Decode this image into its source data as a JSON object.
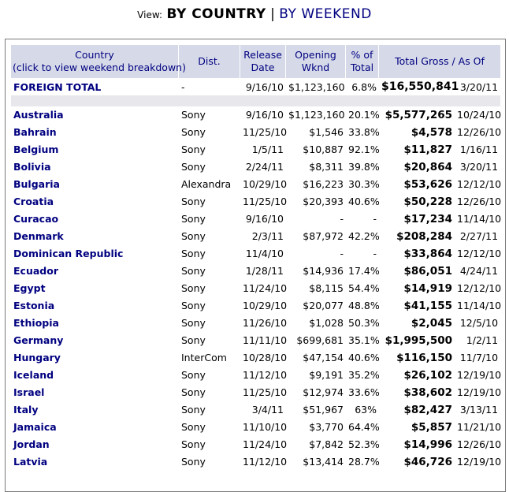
{
  "view": {
    "label": "View:",
    "current": "BY COUNTRY",
    "separator": "|",
    "alternate": "BY WEEKEND"
  },
  "headers": {
    "country_line1": "Country",
    "country_line2": "(click to view weekend breakdown)",
    "dist": "Dist.",
    "release_line1": "Release",
    "release_line2": "Date",
    "opening_line1": "Opening",
    "opening_line2": "Wknd",
    "pct_line1": "% of",
    "pct_line2": "Total",
    "gross": "Total Gross / As Of"
  },
  "foreign_total": {
    "country": "FOREIGN TOTAL",
    "dist": "-",
    "release": "9/16/10",
    "opening": "$1,123,160",
    "pct": "6.8%",
    "gross": "$16,550,841",
    "as_of": "3/20/11"
  },
  "rows": [
    {
      "country": "Australia",
      "dist": "Sony",
      "release": "9/16/10",
      "opening": "$1,123,160",
      "pct": "20.1%",
      "gross": "$5,577,265",
      "as_of": "10/24/10"
    },
    {
      "country": "Bahrain",
      "dist": "Sony",
      "release": "11/25/10",
      "opening": "$1,546",
      "pct": "33.8%",
      "gross": "$4,578",
      "as_of": "12/26/10"
    },
    {
      "country": "Belgium",
      "dist": "Sony",
      "release": "1/5/11",
      "opening": "$10,887",
      "pct": "92.1%",
      "gross": "$11,827",
      "as_of": "1/16/11"
    },
    {
      "country": "Bolivia",
      "dist": "Sony",
      "release": "2/24/11",
      "opening": "$8,311",
      "pct": "39.8%",
      "gross": "$20,864",
      "as_of": "3/20/11"
    },
    {
      "country": "Bulgaria",
      "dist": "Alexandra",
      "release": "10/29/10",
      "opening": "$16,223",
      "pct": "30.3%",
      "gross": "$53,626",
      "as_of": "12/12/10"
    },
    {
      "country": "Croatia",
      "dist": "Sony",
      "release": "11/25/10",
      "opening": "$20,393",
      "pct": "40.6%",
      "gross": "$50,228",
      "as_of": "12/26/10"
    },
    {
      "country": "Curacao",
      "dist": "Sony",
      "release": "9/16/10",
      "opening": "-",
      "pct": "-",
      "gross": "$17,234",
      "as_of": "11/14/10"
    },
    {
      "country": "Denmark",
      "dist": "Sony",
      "release": "2/3/11",
      "opening": "$87,972",
      "pct": "42.2%",
      "gross": "$208,284",
      "as_of": "2/27/11"
    },
    {
      "country": "Dominican Republic",
      "dist": "Sony",
      "release": "11/4/10",
      "opening": "-",
      "pct": "-",
      "gross": "$33,864",
      "as_of": "12/12/10"
    },
    {
      "country": "Ecuador",
      "dist": "Sony",
      "release": "1/28/11",
      "opening": "$14,936",
      "pct": "17.4%",
      "gross": "$86,051",
      "as_of": "4/24/11"
    },
    {
      "country": "Egypt",
      "dist": "Sony",
      "release": "11/24/10",
      "opening": "$8,115",
      "pct": "54.4%",
      "gross": "$14,919",
      "as_of": "12/12/10"
    },
    {
      "country": "Estonia",
      "dist": "Sony",
      "release": "10/29/10",
      "opening": "$20,077",
      "pct": "48.8%",
      "gross": "$41,155",
      "as_of": "11/14/10"
    },
    {
      "country": "Ethiopia",
      "dist": "Sony",
      "release": "11/26/10",
      "opening": "$1,028",
      "pct": "50.3%",
      "gross": "$2,045",
      "as_of": "12/5/10"
    },
    {
      "country": "Germany",
      "dist": "Sony",
      "release": "11/11/10",
      "opening": "$699,681",
      "pct": "35.1%",
      "gross": "$1,995,500",
      "as_of": "1/2/11"
    },
    {
      "country": "Hungary",
      "dist": "InterCom",
      "release": "10/28/10",
      "opening": "$47,154",
      "pct": "40.6%",
      "gross": "$116,150",
      "as_of": "11/7/10"
    },
    {
      "country": "Iceland",
      "dist": "Sony",
      "release": "11/12/10",
      "opening": "$9,191",
      "pct": "35.2%",
      "gross": "$26,102",
      "as_of": "12/19/10"
    },
    {
      "country": "Israel",
      "dist": "Sony",
      "release": "11/25/10",
      "opening": "$12,974",
      "pct": "33.6%",
      "gross": "$38,602",
      "as_of": "12/19/10"
    },
    {
      "country": "Italy",
      "dist": "Sony",
      "release": "3/4/11",
      "opening": "$51,967",
      "pct": "63%",
      "gross": "$82,427",
      "as_of": "3/13/11"
    },
    {
      "country": "Jamaica",
      "dist": "Sony",
      "release": "11/10/10",
      "opening": "$3,770",
      "pct": "64.4%",
      "gross": "$5,857",
      "as_of": "11/21/10"
    },
    {
      "country": "Jordan",
      "dist": "Sony",
      "release": "11/24/10",
      "opening": "$7,842",
      "pct": "52.3%",
      "gross": "$14,996",
      "as_of": "12/26/10"
    },
    {
      "country": "Latvia",
      "dist": "Sony",
      "release": "11/12/10",
      "opening": "$13,414",
      "pct": "28.7%",
      "gross": "$46,726",
      "as_of": "12/19/10"
    }
  ]
}
